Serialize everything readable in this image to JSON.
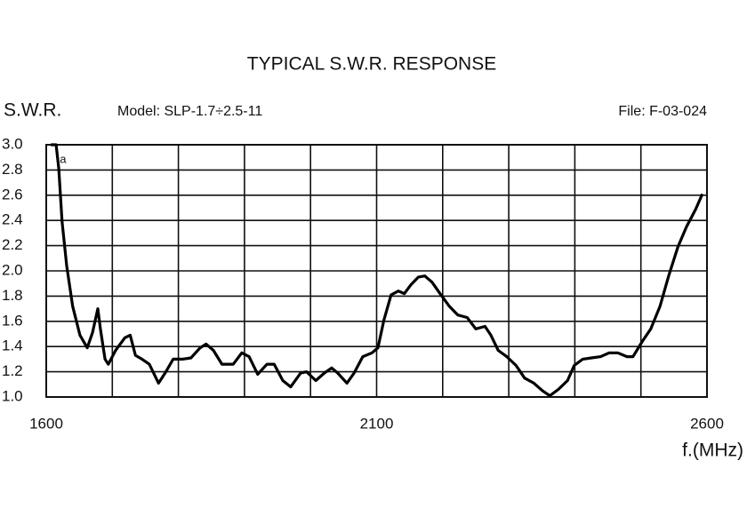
{
  "chart_data": {
    "type": "line",
    "title": "TYPICAL S.W.R. RESPONSE",
    "y_label": "S.W.R.",
    "x_label": "f.(MHz)",
    "model": "Model:  SLP-1.7÷2.5-11",
    "file": "File:  F-03-024",
    "xlim": [
      1600,
      2600
    ],
    "xticks": [
      1600,
      2100,
      2600
    ],
    "xgrid": [
      1600,
      1700,
      1800,
      1900,
      2000,
      2100,
      2200,
      2300,
      2400,
      2500,
      2600
    ],
    "ylim": [
      1.0,
      3.0
    ],
    "yticks": [
      {
        "value": 1,
        "label": "1.0"
      },
      1.2,
      1.4,
      1.6,
      1.8,
      {
        "value": 2,
        "label": "2.0"
      },
      2.2,
      2.4,
      2.6,
      2.8,
      {
        "value": 3,
        "label": "3.0"
      }
    ],
    "grid": true,
    "x": [
      1607,
      1615,
      1619,
      1624,
      1631,
      1640,
      1651,
      1662,
      1670,
      1678,
      1682,
      1689,
      1694,
      1705,
      1719,
      1727,
      1735,
      1745,
      1756,
      1770,
      1780,
      1792,
      1806,
      1819,
      1833,
      1842,
      1853,
      1866,
      1883,
      1896,
      1907,
      1920,
      1934,
      1945,
      1958,
      1970,
      1985,
      1994,
      2008,
      2021,
      2032,
      2041,
      2055,
      2066,
      2079,
      2093,
      2102,
      2111,
      2122,
      2133,
      2142,
      2152,
      2163,
      2173,
      2184,
      2196,
      2210,
      2223,
      2237,
      2250,
      2264,
      2273,
      2284,
      2297,
      2311,
      2324,
      2338,
      2351,
      2362,
      2375,
      2389,
      2399,
      2412,
      2425,
      2439,
      2452,
      2465,
      2479,
      2488,
      2502,
      2515,
      2529,
      2542,
      2556,
      2569,
      2583,
      2593
    ],
    "series": [
      {
        "name": "a",
        "color": "#000000",
        "values": [
          3.0,
          3.0,
          2.81,
          2.39,
          2.04,
          1.72,
          1.49,
          1.39,
          1.51,
          1.7,
          1.54,
          1.3,
          1.26,
          1.37,
          1.47,
          1.49,
          1.33,
          1.3,
          1.26,
          1.11,
          1.19,
          1.3,
          1.3,
          1.31,
          1.39,
          1.42,
          1.37,
          1.26,
          1.26,
          1.35,
          1.32,
          1.18,
          1.26,
          1.26,
          1.13,
          1.08,
          1.19,
          1.2,
          1.13,
          1.19,
          1.23,
          1.19,
          1.11,
          1.19,
          1.32,
          1.35,
          1.39,
          1.61,
          1.81,
          1.84,
          1.82,
          1.89,
          1.95,
          1.96,
          1.91,
          1.82,
          1.72,
          1.65,
          1.63,
          1.54,
          1.56,
          1.49,
          1.37,
          1.32,
          1.25,
          1.15,
          1.11,
          1.05,
          1.01,
          1.06,
          1.13,
          1.25,
          1.3,
          1.31,
          1.32,
          1.35,
          1.35,
          1.32,
          1.32,
          1.44,
          1.54,
          1.72,
          1.96,
          2.19,
          2.35,
          2.49,
          2.61
        ]
      }
    ]
  }
}
